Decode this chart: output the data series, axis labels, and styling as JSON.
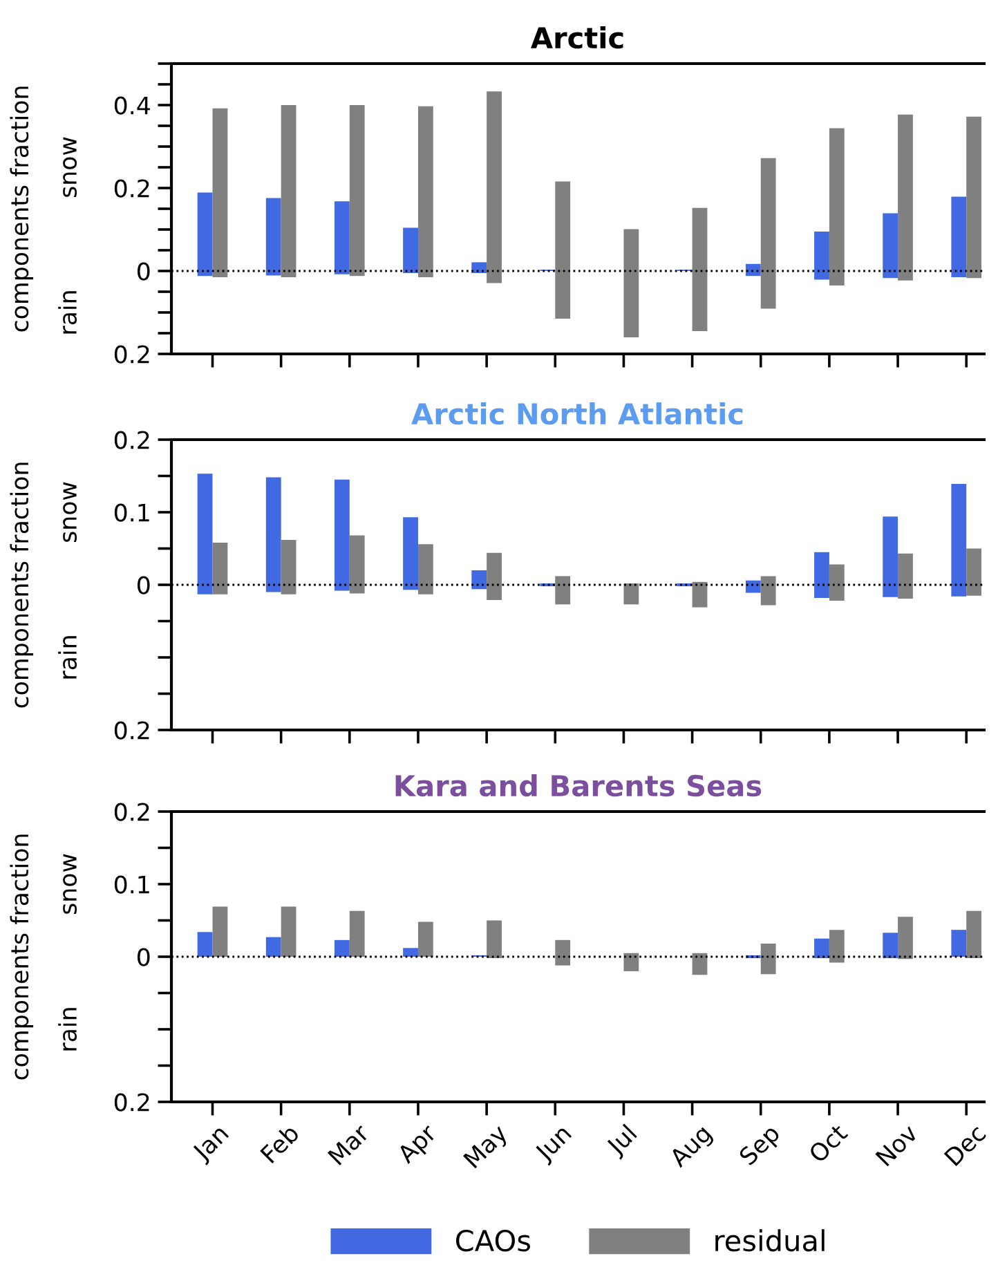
{
  "chart_data": [
    {
      "type": "bar",
      "title": "Arctic",
      "ylabel": "components fraction",
      "annotations": [
        "snow",
        "rain"
      ],
      "categories": [
        "Jan",
        "Feb",
        "Mar",
        "Apr",
        "May",
        "Jun",
        "Jul",
        "Aug",
        "Sep",
        "Oct",
        "Nov",
        "Dec"
      ],
      "series": [
        {
          "name": "CAOs",
          "color": "#4169e1",
          "base": [
            -0.012,
            -0.011,
            -0.008,
            -0.005,
            -0.005,
            0,
            null,
            0,
            -0.012,
            -0.021,
            -0.017,
            -0.015
          ],
          "values": [
            0.201,
            0.187,
            0.176,
            0.109,
            0.026,
            0.003,
            null,
            0.003,
            0.029,
            0.116,
            0.156,
            0.194
          ]
        },
        {
          "name": "residual",
          "color": "#808080",
          "base": [
            -0.015,
            -0.015,
            -0.012,
            -0.015,
            -0.029,
            -0.115,
            -0.16,
            -0.145,
            -0.091,
            -0.035,
            -0.023,
            -0.017
          ],
          "values": [
            0.407,
            0.415,
            0.412,
            0.412,
            0.462,
            0.331,
            0.261,
            0.297,
            0.363,
            0.379,
            0.4,
            0.389
          ]
        }
      ],
      "ylim": [
        -0.2,
        0.5
      ],
      "yticks": [
        {
          "value": -0.2,
          "label": "0.2"
        },
        {
          "value": -0.15,
          "label": null
        },
        {
          "value": -0.1,
          "label": null
        },
        {
          "value": -0.05,
          "label": null
        },
        0,
        {
          "value": 0.05,
          "label": null
        },
        {
          "value": 0.1,
          "label": null
        },
        {
          "value": 0.15,
          "label": null
        },
        0.2,
        {
          "value": 0.25,
          "label": null
        },
        {
          "value": 0.3,
          "label": null
        },
        {
          "value": 0.35,
          "label": null
        },
        0.4,
        {
          "value": 0.45,
          "label": null
        },
        {
          "value": 0.5,
          "label": null
        }
      ],
      "ref_lines": [
        {
          "axis": "y",
          "value": 0,
          "color": "#000000",
          "line_style": "dotted"
        }
      ],
      "tick_labels": "y",
      "grid": false,
      "legend": "bottom"
    },
    {
      "type": "bar",
      "title": "Arctic North Atlantic",
      "ylabel": "components fraction",
      "annotations": [
        "snow",
        "rain"
      ],
      "categories": [
        "Jan",
        "Feb",
        "Mar",
        "Apr",
        "May",
        "Jun",
        "Jul",
        "Aug",
        "Sep",
        "Oct",
        "Nov",
        "Dec"
      ],
      "series": [
        {
          "name": "CAOs",
          "color": "#4169e1",
          "base": [
            -0.013,
            -0.01,
            -0.008,
            -0.007,
            -0.006,
            -0.002,
            null,
            -0.002,
            -0.011,
            -0.018,
            -0.017,
            -0.016
          ],
          "values": [
            0.166,
            0.158,
            0.153,
            0.1,
            0.026,
            0.004,
            null,
            0.004,
            0.017,
            0.063,
            0.111,
            0.155
          ]
        },
        {
          "name": "residual",
          "color": "#808080",
          "base": [
            -0.013,
            -0.013,
            -0.012,
            -0.013,
            -0.021,
            -0.027,
            -0.027,
            -0.031,
            -0.028,
            -0.022,
            -0.019,
            -0.015
          ],
          "values": [
            0.071,
            0.075,
            0.08,
            0.069,
            0.065,
            0.039,
            0.029,
            0.035,
            0.04,
            0.05,
            0.062,
            0.065
          ]
        }
      ],
      "ylim": [
        -0.2,
        0.2
      ],
      "yticks": [
        {
          "value": -0.2,
          "label": "0.2"
        },
        {
          "value": -0.15,
          "label": null
        },
        {
          "value": -0.1,
          "label": null
        },
        {
          "value": -0.05,
          "label": null
        },
        0,
        {
          "value": 0.05,
          "label": null
        },
        0.1,
        {
          "value": 0.15,
          "label": null
        },
        0.2
      ],
      "ref_lines": [
        {
          "axis": "y",
          "value": 0,
          "color": "#000000",
          "line_style": "dotted"
        }
      ],
      "tick_labels": "y",
      "grid": false,
      "legend": "bottom"
    },
    {
      "type": "bar",
      "title": "Kara and Barents Seas",
      "ylabel": "components fraction",
      "annotations": [
        "snow",
        "rain"
      ],
      "categories": [
        "Jan",
        "Feb",
        "Mar",
        "Apr",
        "May",
        "Jun",
        "Jul",
        "Aug",
        "Sep",
        "Oct",
        "Nov",
        "Dec"
      ],
      "series": [
        {
          "name": "CAOs",
          "color": "#4169e1",
          "base": [
            0,
            0,
            0,
            0,
            0,
            null,
            null,
            null,
            -0.002,
            -0.002,
            -0.002,
            0
          ],
          "values": [
            0.034,
            0.027,
            0.023,
            0.012,
            0.002,
            null,
            null,
            null,
            0.004,
            0.027,
            0.035,
            0.037
          ]
        },
        {
          "name": "residual",
          "color": "#808080",
          "base": [
            0,
            0,
            0,
            0,
            -0.002,
            -0.012,
            -0.02,
            -0.025,
            -0.024,
            -0.008,
            -0.003,
            -0.002
          ],
          "values": [
            0.069,
            0.069,
            0.063,
            0.048,
            0.052,
            0.035,
            0.025,
            0.03,
            0.042,
            0.045,
            0.058,
            0.065
          ]
        }
      ],
      "ylim": [
        -0.2,
        0.2
      ],
      "yticks": [
        {
          "value": -0.2,
          "label": "0.2"
        },
        {
          "value": -0.15,
          "label": null
        },
        {
          "value": -0.1,
          "label": null
        },
        {
          "value": -0.05,
          "label": null
        },
        0,
        {
          "value": 0.05,
          "label": null
        },
        0.1,
        {
          "value": 0.15,
          "label": null
        },
        0.2
      ],
      "ref_lines": [
        {
          "axis": "y",
          "value": 0,
          "color": "#000000",
          "line_style": "dotted"
        }
      ],
      "grid": false,
      "legend": "bottom"
    }
  ]
}
